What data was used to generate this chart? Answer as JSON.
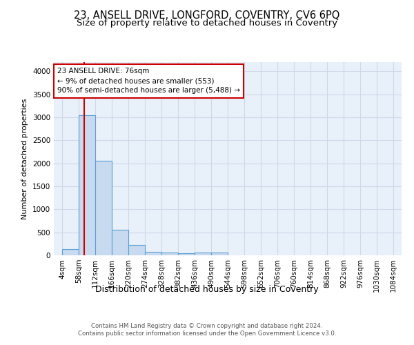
{
  "title1": "23, ANSELL DRIVE, LONGFORD, COVENTRY, CV6 6PQ",
  "title2": "Size of property relative to detached houses in Coventry",
  "xlabel": "Distribution of detached houses by size in Coventry",
  "ylabel": "Number of detached properties",
  "bin_labels": [
    "4sqm",
    "58sqm",
    "112sqm",
    "166sqm",
    "220sqm",
    "274sqm",
    "328sqm",
    "382sqm",
    "436sqm",
    "490sqm",
    "544sqm",
    "598sqm",
    "652sqm",
    "706sqm",
    "760sqm",
    "814sqm",
    "868sqm",
    "922sqm",
    "976sqm",
    "1030sqm",
    "1084sqm"
  ],
  "bin_edges": [
    4,
    58,
    112,
    166,
    220,
    274,
    328,
    382,
    436,
    490,
    544,
    598,
    652,
    706,
    760,
    814,
    868,
    922,
    976,
    1030,
    1084
  ],
  "bar_heights": [
    140,
    3040,
    2060,
    555,
    220,
    75,
    55,
    50,
    55,
    55,
    0,
    0,
    0,
    0,
    0,
    0,
    0,
    0,
    0,
    0
  ],
  "bar_color": "#c8daf0",
  "bar_edge_color": "#5a9fd4",
  "background_color": "#e8f0fa",
  "grid_color": "#d0d8e8",
  "property_size": 76,
  "vline_color": "#cc0000",
  "annotation_line1": "23 ANSELL DRIVE: 76sqm",
  "annotation_line2": "← 9% of detached houses are smaller (553)",
  "annotation_line3": "90% of semi-detached houses are larger (5,488) →",
  "annotation_box_color": "#ffffff",
  "annotation_box_edge_color": "#cc0000",
  "ylim": [
    0,
    4200
  ],
  "yticks": [
    0,
    500,
    1000,
    1500,
    2000,
    2500,
    3000,
    3500,
    4000
  ],
  "footer_text": "Contains HM Land Registry data © Crown copyright and database right 2024.\nContains public sector information licensed under the Open Government Licence v3.0.",
  "title1_fontsize": 10.5,
  "title2_fontsize": 9.5,
  "ylabel_fontsize": 8,
  "xlabel_fontsize": 9
}
